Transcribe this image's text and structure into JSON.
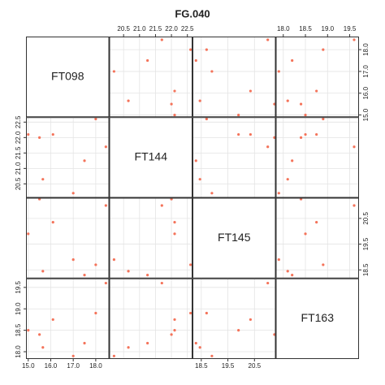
{
  "chart_data": {
    "type": "scatter-matrix",
    "title": "FG.040",
    "color": "#f4735a",
    "grid": true,
    "variables": [
      {
        "name": "FT098",
        "values": [
          15.0,
          15.5,
          15.65,
          16.1,
          17.0,
          17.5,
          18.0,
          18.45
        ],
        "lim": [
          14.9,
          18.6
        ],
        "ticks": [
          {
            "value": 15,
            "label": "15.0"
          },
          {
            "value": 16,
            "label": "16.0"
          },
          {
            "value": 17,
            "label": "17.0"
          },
          {
            "value": 18,
            "label": "18.0"
          }
        ]
      },
      {
        "name": "FT144",
        "values": [
          22.1,
          22.0,
          20.65,
          22.1,
          20.2,
          21.25,
          22.6,
          21.7
        ],
        "lim": [
          20.05,
          22.66
        ],
        "ticks": [
          20.5,
          {
            "value": 21,
            "label": "21.0"
          },
          21.5,
          {
            "value": 22,
            "label": "22.0"
          },
          22.5
        ]
      },
      {
        "name": "FT145",
        "values": [
          19.9,
          21.25,
          18.45,
          20.35,
          18.9,
          18.3,
          18.7,
          21.0
        ],
        "lim": [
          18.17,
          21.3
        ],
        "ticks": [
          18.5,
          19.5,
          20.5
        ]
      },
      {
        "name": "FT163",
        "values": [
          18.5,
          18.4,
          18.1,
          18.75,
          17.9,
          18.2,
          18.9,
          19.6
        ],
        "lim": [
          17.83,
          19.71
        ],
        "ticks": [
          {
            "value": 18,
            "label": "18.0"
          },
          18.5,
          {
            "value": 19,
            "label": "19.0"
          },
          19.5
        ]
      }
    ]
  }
}
